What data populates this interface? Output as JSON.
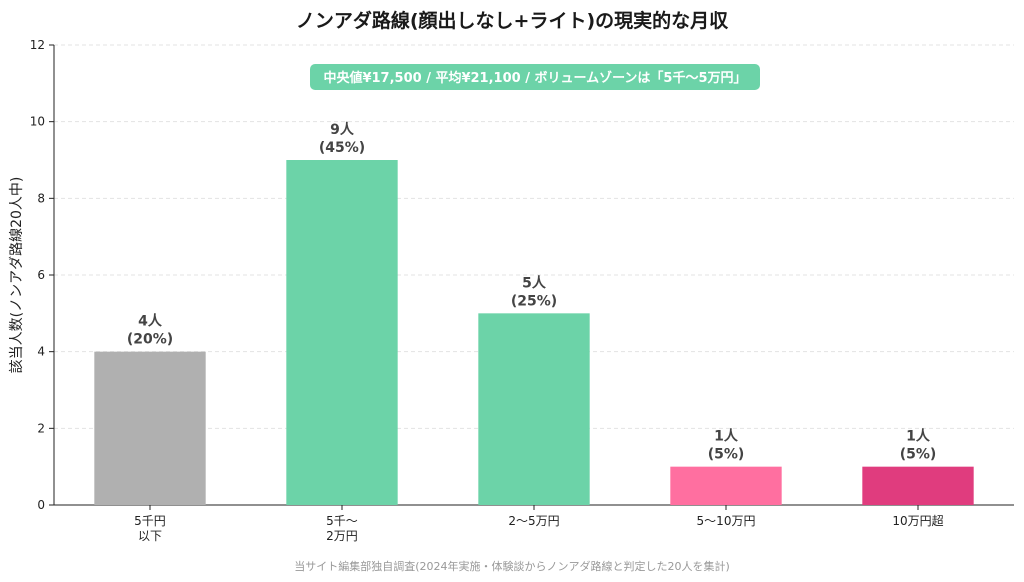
{
  "chart_data": {
    "type": "bar",
    "title": "ノンアダ路線(顔出しなし+ライト)の現実的な月収",
    "xlabel": "",
    "ylabel": "該当人数(ノンアダ路線20人中)",
    "ylim": [
      0,
      12
    ],
    "yticks": [
      0,
      2,
      4,
      6,
      8,
      10,
      12
    ],
    "grid": true,
    "categories": [
      [
        "5千円",
        "以下"
      ],
      [
        "5千〜",
        "2万円"
      ],
      [
        "2〜5万円"
      ],
      [
        "5〜10万円"
      ],
      [
        "10万円超"
      ]
    ],
    "values": [
      4,
      9,
      5,
      1,
      1
    ],
    "data_labels": [
      [
        "4人",
        "(20%)"
      ],
      [
        "9人",
        "(45%)"
      ],
      [
        "5人",
        "(25%)"
      ],
      [
        "1人",
        "(5%)"
      ],
      [
        "1人",
        "(5%)"
      ]
    ],
    "colors": [
      "#b0b0b0",
      "#6cd3a8",
      "#6cd3a8",
      "#ff6fa0",
      "#e03c7e"
    ],
    "annotation": "中央値¥17,500 / 平均¥21,100 / ボリュームゾーンは「5千〜5万円」",
    "annotation_color": "#6cd3a8",
    "source": "当サイト編集部独自調査(2024年実施・体験談からノンアダ路線と判定した20人を集計)"
  }
}
